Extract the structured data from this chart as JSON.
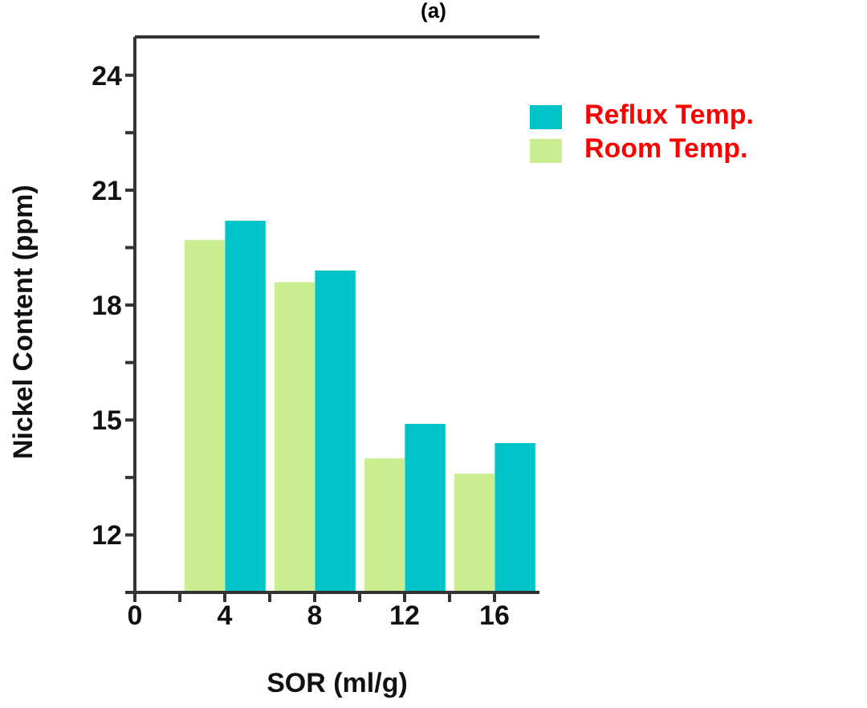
{
  "chart_data": {
    "type": "bar",
    "title": "(a)",
    "xlabel": "SOR (ml/g)",
    "ylabel": "Nickel Content (ppm)",
    "x": [
      4,
      8,
      12,
      16
    ],
    "series": [
      {
        "name": "Room Temp.",
        "color": "#ccee92",
        "values": [
          19.7,
          18.6,
          14.0,
          13.6
        ]
      },
      {
        "name": "Reflux Temp.",
        "color": "#00c5c8",
        "values": [
          20.2,
          18.9,
          14.9,
          14.4
        ]
      }
    ],
    "xlim": [
      0,
      18
    ],
    "xticks": [
      0,
      {
        "value": 2,
        "label": null
      },
      4,
      {
        "value": 6,
        "label": null
      },
      8,
      {
        "value": 10,
        "label": null
      },
      12,
      {
        "value": 14,
        "label": null
      },
      16
    ],
    "ylim": [
      10.5,
      25
    ],
    "yticks": [
      {
        "value": 10.5,
        "label": null
      },
      12,
      {
        "value": 13.5,
        "label": null
      },
      15,
      {
        "value": 16.5,
        "label": null
      },
      18,
      {
        "value": 19.5,
        "label": null
      },
      21,
      {
        "value": 22.5,
        "label": null
      },
      24
    ],
    "legend": "top right",
    "grid": false
  }
}
